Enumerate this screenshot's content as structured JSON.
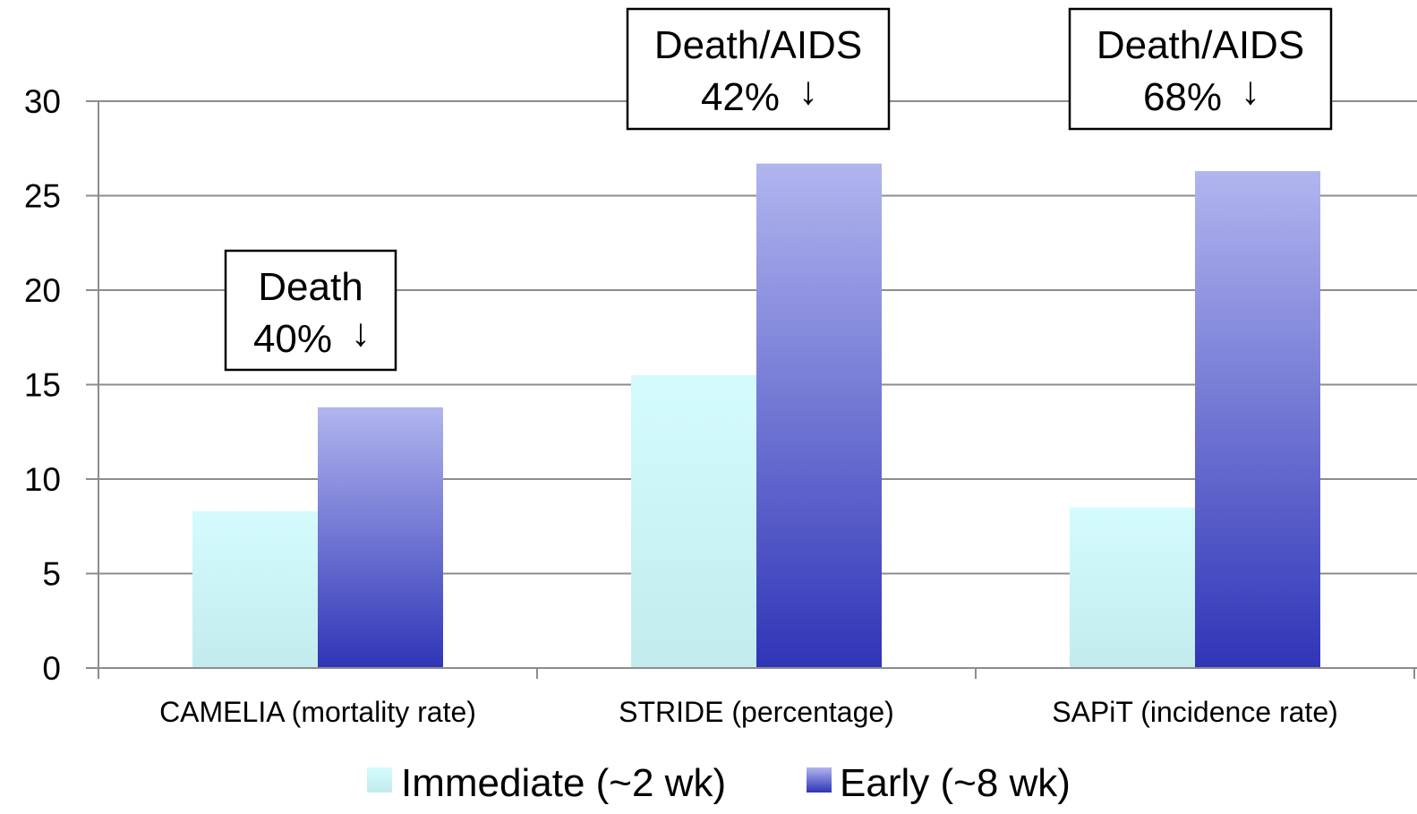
{
  "chart_data": {
    "type": "bar",
    "categories": [
      "CAMELIA (mortality rate)",
      "STRIDE (percentage)",
      "SAPiT (incidence rate)"
    ],
    "series": [
      {
        "name": "Immediate (~2 wk)",
        "values": [
          8.3,
          15.5,
          8.5
        ]
      },
      {
        "name": "Early (~8 wk)",
        "values": [
          13.8,
          26.7,
          26.3
        ]
      }
    ],
    "ylim": [
      0,
      30
    ],
    "yticks": [
      0,
      5,
      10,
      15,
      20,
      25,
      30
    ],
    "grid": true,
    "legend_position": "bottom",
    "colors": {
      "immediate_top": "#d4fbfd",
      "immediate_bottom": "#c3ebed",
      "early_top": "#b1b5ef",
      "early_bottom": "#2f35b7",
      "grid": "#8c8c8c"
    },
    "annotations": [
      {
        "category_index": 0,
        "line1": "Death",
        "line2": "40%",
        "arrow": "↓"
      },
      {
        "category_index": 1,
        "line1": "Death/AIDS",
        "line2": "42%",
        "arrow": "↓"
      },
      {
        "category_index": 2,
        "line1": "Death/AIDS",
        "line2": "68%",
        "arrow": "↓"
      }
    ]
  }
}
